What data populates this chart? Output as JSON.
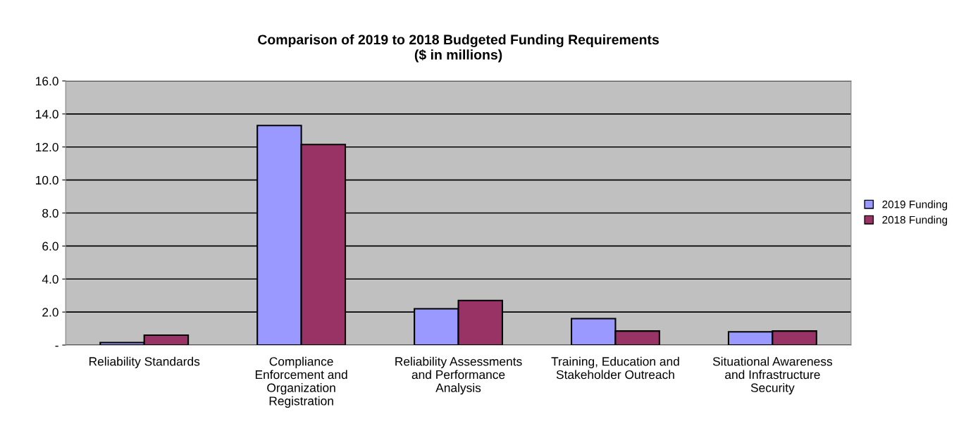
{
  "chart_data": {
    "type": "bar",
    "title": "Comparison of 2019 to 2018 Budgeted Funding Requirements\n($ in millions)",
    "categories": [
      "Reliability Standards",
      "Compliance\nEnforcement and\nOrganization\nRegistration",
      "Reliability Assessments\nand Performance\nAnalysis",
      "Training, Education and\nStakeholder Outreach",
      "Situational Awareness\nand Infrastructure\nSecurity"
    ],
    "series": [
      {
        "name": "2019 Funding",
        "color": "#9999ff",
        "values": [
          0.15,
          13.3,
          2.2,
          1.6,
          0.8
        ]
      },
      {
        "name": "2018 Funding",
        "color": "#993366",
        "values": [
          0.6,
          12.15,
          2.7,
          0.85,
          0.85
        ]
      }
    ],
    "ylim": [
      0,
      16
    ],
    "yticks": [
      {
        "value": 0,
        "label": "-"
      },
      {
        "value": 2,
        "label": "2.0"
      },
      {
        "value": 4,
        "label": "4.0"
      },
      {
        "value": 6,
        "label": "6.0"
      },
      {
        "value": 8,
        "label": "8.0"
      },
      {
        "value": 10,
        "label": "10.0"
      },
      {
        "value": 12,
        "label": "12.0"
      },
      {
        "value": 14,
        "label": "14.0"
      },
      {
        "value": 16,
        "label": "16.0"
      }
    ],
    "grid": "y",
    "legend": "right"
  }
}
